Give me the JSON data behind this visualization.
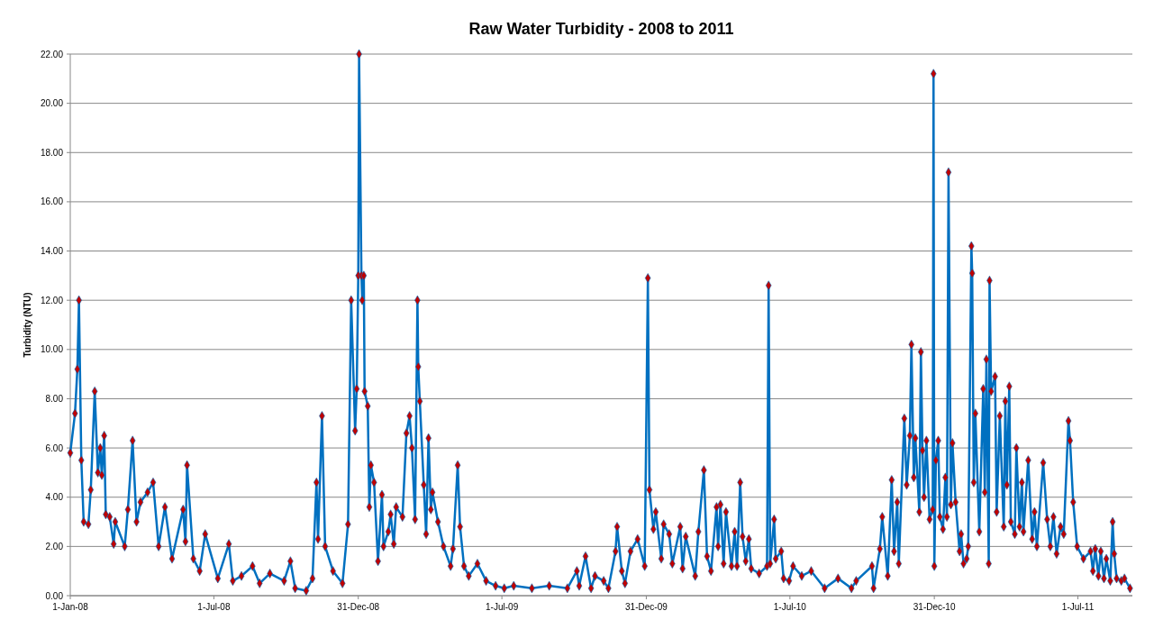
{
  "chart_data": {
    "type": "line",
    "title": "Raw Water Turbidity - 2008 to 2011",
    "ylabel": "Turbidity (NTU)",
    "xlim": [
      "2008-01-01",
      "2011-09-08"
    ],
    "xticks": [
      {
        "value": "2008-01-01",
        "label": "1-Jan-08"
      },
      {
        "value": "2008-07-01",
        "label": "1-Jul-08"
      },
      {
        "value": "2008-12-31",
        "label": "31-Dec-08"
      },
      {
        "value": "2009-07-01",
        "label": "1-Jul-09"
      },
      {
        "value": "2009-12-31",
        "label": "31-Dec-09"
      },
      {
        "value": "2010-07-01",
        "label": "1-Jul-10"
      },
      {
        "value": "2010-12-31",
        "label": "31-Dec-10"
      },
      {
        "value": "2011-07-01",
        "label": "1-Jul-11"
      }
    ],
    "ylim": [
      0,
      22
    ],
    "yticks": [
      {
        "value": 0,
        "label": "0.00"
      },
      {
        "value": 2,
        "label": "2.00"
      },
      {
        "value": 4,
        "label": "4.00"
      },
      {
        "value": 6,
        "label": "6.00"
      },
      {
        "value": 8,
        "label": "8.00"
      },
      {
        "value": 10,
        "label": "10.00"
      },
      {
        "value": 12,
        "label": "12.00"
      },
      {
        "value": 14,
        "label": "14.00"
      },
      {
        "value": 16,
        "label": "16.00"
      },
      {
        "value": 18,
        "label": "18.00"
      },
      {
        "value": 20,
        "label": "20.00"
      },
      {
        "value": 22,
        "label": "22.00"
      }
    ],
    "grid": "y",
    "marker": "diamond",
    "line_style": "solid",
    "series": [
      {
        "color": "#0070c0",
        "x": [
          "2008-01-01",
          "2008-01-07",
          "2008-01-10",
          "2008-01-12",
          "2008-01-15",
          "2008-01-18",
          "2008-01-24",
          "2008-01-27",
          "2008-02-01",
          "2008-02-05",
          "2008-02-08",
          "2008-02-10",
          "2008-02-13",
          "2008-02-15",
          "2008-02-20",
          "2008-02-25",
          "2008-02-27",
          "2008-03-10",
          "2008-03-14",
          "2008-03-20",
          "2008-03-25",
          "2008-03-30",
          "2008-04-08",
          "2008-04-15",
          "2008-04-22",
          "2008-04-30",
          "2008-05-09",
          "2008-05-23",
          "2008-05-26",
          "2008-05-28",
          "2008-06-05",
          "2008-06-13",
          "2008-06-20",
          "2008-07-06",
          "2008-07-20",
          "2008-07-25",
          "2008-08-05",
          "2008-08-19",
          "2008-08-28",
          "2008-09-10",
          "2008-09-28",
          "2008-10-06",
          "2008-10-12",
          "2008-10-26",
          "2008-11-03",
          "2008-11-08",
          "2008-11-10",
          "2008-11-15",
          "2008-11-19",
          "2008-11-29",
          "2008-12-11",
          "2008-12-18",
          "2008-12-22",
          "2008-12-27",
          "2008-12-29",
          "2008-12-31",
          "2009-01-01",
          "2009-01-04",
          "2009-01-05",
          "2009-01-07",
          "2009-01-08",
          "2009-01-12",
          "2009-01-14",
          "2009-01-16",
          "2009-01-20",
          "2009-01-25",
          "2009-01-30",
          "2009-02-01",
          "2009-02-07",
          "2009-02-10",
          "2009-02-14",
          "2009-02-17",
          "2009-02-25",
          "2009-03-02",
          "2009-03-06",
          "2009-03-09",
          "2009-03-13",
          "2009-03-16",
          "2009-03-17",
          "2009-03-19",
          "2009-03-24",
          "2009-03-27",
          "2009-03-30",
          "2009-04-02",
          "2009-04-04",
          "2009-04-11",
          "2009-04-18",
          "2009-04-27",
          "2009-04-30",
          "2009-05-06",
          "2009-05-09",
          "2009-05-14",
          "2009-05-20",
          "2009-05-31",
          "2009-06-11",
          "2009-06-23",
          "2009-07-04",
          "2009-07-16",
          "2009-08-08",
          "2009-08-30",
          "2009-09-22",
          "2009-10-04",
          "2009-10-07",
          "2009-10-15",
          "2009-10-22",
          "2009-10-27",
          "2009-11-07",
          "2009-11-13",
          "2009-11-22",
          "2009-11-24",
          "2009-11-30",
          "2009-12-04",
          "2009-12-11",
          "2009-12-20",
          "2009-12-29",
          "2010-01-02",
          "2010-01-04",
          "2010-01-09",
          "2010-01-12",
          "2010-01-19",
          "2010-01-22",
          "2010-01-29",
          "2010-02-02",
          "2010-02-12",
          "2010-02-15",
          "2010-02-19",
          "2010-03-03",
          "2010-03-07",
          "2010-03-14",
          "2010-03-18",
          "2010-03-23",
          "2010-03-30",
          "2010-04-01",
          "2010-04-04",
          "2010-04-08",
          "2010-04-11",
          "2010-04-18",
          "2010-04-22",
          "2010-04-25",
          "2010-04-29",
          "2010-05-02",
          "2010-05-06",
          "2010-05-10",
          "2010-05-13",
          "2010-05-23",
          "2010-06-02",
          "2010-06-04",
          "2010-06-06",
          "2010-06-11",
          "2010-06-13",
          "2010-06-20",
          "2010-06-23",
          "2010-06-30",
          "2010-07-05",
          "2010-07-16",
          "2010-07-28",
          "2010-08-14",
          "2010-08-31",
          "2010-09-17",
          "2010-09-23",
          "2010-10-13",
          "2010-10-15",
          "2010-10-23",
          "2010-10-26",
          "2010-11-02",
          "2010-11-07",
          "2010-11-10",
          "2010-11-14",
          "2010-11-16",
          "2010-11-23",
          "2010-11-26",
          "2010-11-30",
          "2010-12-02",
          "2010-12-05",
          "2010-12-07",
          "2010-12-12",
          "2010-12-14",
          "2010-12-16",
          "2010-12-18",
          "2010-12-21",
          "2010-12-25",
          "2010-12-29",
          "2010-12-30",
          "2010-12-31",
          "2011-01-02",
          "2011-01-05",
          "2011-01-07",
          "2011-01-11",
          "2011-01-14",
          "2011-01-16",
          "2011-01-18",
          "2011-01-21",
          "2011-01-23",
          "2011-01-27",
          "2011-02-01",
          "2011-02-03",
          "2011-02-06",
          "2011-02-10",
          "2011-02-12",
          "2011-02-16",
          "2011-02-17",
          "2011-02-19",
          "2011-02-21",
          "2011-02-26",
          "2011-03-03",
          "2011-03-05",
          "2011-03-07",
          "2011-03-10",
          "2011-03-11",
          "2011-03-13",
          "2011-03-18",
          "2011-03-20",
          "2011-03-24",
          "2011-03-29",
          "2011-03-31",
          "2011-04-02",
          "2011-04-05",
          "2011-04-07",
          "2011-04-12",
          "2011-04-14",
          "2011-04-18",
          "2011-04-21",
          "2011-04-23",
          "2011-04-29",
          "2011-05-04",
          "2011-05-07",
          "2011-05-10",
          "2011-05-18",
          "2011-05-23",
          "2011-05-27",
          "2011-05-31",
          "2011-06-04",
          "2011-06-09",
          "2011-06-13",
          "2011-06-19",
          "2011-06-21",
          "2011-06-25",
          "2011-06-30",
          "2011-07-08",
          "2011-07-17",
          "2011-07-20",
          "2011-07-23",
          "2011-07-27",
          "2011-07-30",
          "2011-08-03",
          "2011-08-06",
          "2011-08-11",
          "2011-08-14",
          "2011-08-16",
          "2011-08-19",
          "2011-08-25",
          "2011-08-29",
          "2011-09-05"
        ],
        "values": [
          5.8,
          7.4,
          9.2,
          12.0,
          5.5,
          3.0,
          2.9,
          4.3,
          8.3,
          5.0,
          6.0,
          4.9,
          6.5,
          3.3,
          3.2,
          2.1,
          3.0,
          2.0,
          3.5,
          6.3,
          3.0,
          3.8,
          4.2,
          4.6,
          2.0,
          3.6,
          1.5,
          3.5,
          2.2,
          5.3,
          1.5,
          1.0,
          2.5,
          0.7,
          2.1,
          0.6,
          0.8,
          1.2,
          0.5,
          0.9,
          0.6,
          1.4,
          0.3,
          0.2,
          0.7,
          4.6,
          2.3,
          7.3,
          2.0,
          1.0,
          0.5,
          2.9,
          12.0,
          6.7,
          8.4,
          13.0,
          22.0,
          13.0,
          12.0,
          13.0,
          8.3,
          7.7,
          3.6,
          5.3,
          4.6,
          1.4,
          4.1,
          2.0,
          2.6,
          3.3,
          2.1,
          3.6,
          3.2,
          6.6,
          7.3,
          6.0,
          3.1,
          12.0,
          9.3,
          7.9,
          4.5,
          2.5,
          6.4,
          3.5,
          4.2,
          3.0,
          2.0,
          1.2,
          1.9,
          5.3,
          2.8,
          1.2,
          0.8,
          1.3,
          0.6,
          0.4,
          0.3,
          0.4,
          0.3,
          0.4,
          0.3,
          1.0,
          0.4,
          1.6,
          0.3,
          0.8,
          0.6,
          0.3,
          1.8,
          2.8,
          1.0,
          0.5,
          1.8,
          2.3,
          1.2,
          12.9,
          4.3,
          2.7,
          3.4,
          1.5,
          2.9,
          2.5,
          1.3,
          2.8,
          1.1,
          2.4,
          0.8,
          2.6,
          5.1,
          1.6,
          1.0,
          3.6,
          2.0,
          3.7,
          1.3,
          3.4,
          1.2,
          2.6,
          1.2,
          4.6,
          2.4,
          1.4,
          2.3,
          1.1,
          0.9,
          1.2,
          12.6,
          1.3,
          3.1,
          1.5,
          1.8,
          0.7,
          0.6,
          1.2,
          0.8,
          1.0,
          0.3,
          0.7,
          0.3,
          0.6,
          1.2,
          0.3,
          1.9,
          3.2,
          0.8,
          4.7,
          1.8,
          3.8,
          1.3,
          7.2,
          4.5,
          6.5,
          10.2,
          4.8,
          6.4,
          3.4,
          9.9,
          5.9,
          4.0,
          6.3,
          3.1,
          3.5,
          21.2,
          1.2,
          5.5,
          6.3,
          3.2,
          2.7,
          4.8,
          3.2,
          17.2,
          3.7,
          6.2,
          3.8,
          1.8,
          2.5,
          1.3,
          1.5,
          2.0,
          14.2,
          13.1,
          4.6,
          7.4,
          2.6,
          8.4,
          4.2,
          9.6,
          1.3,
          12.8,
          8.3,
          8.9,
          3.4,
          7.3,
          2.8,
          7.9,
          4.5,
          8.5,
          3.0,
          2.5,
          6.0,
          2.8,
          4.6,
          2.6,
          5.5,
          2.3,
          3.4,
          2.0,
          5.4,
          3.1,
          2.0,
          3.2,
          1.7,
          2.8,
          2.5,
          7.1,
          6.3,
          3.8,
          2.0,
          1.5,
          1.8,
          1.0,
          1.9,
          0.8,
          1.8,
          0.7,
          1.5,
          0.6,
          3.0,
          1.7,
          0.7,
          0.6,
          0.7,
          0.3
        ]
      }
    ]
  }
}
